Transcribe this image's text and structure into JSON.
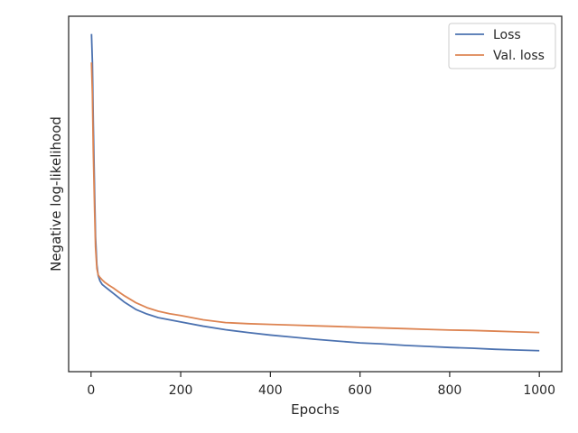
{
  "chart_data": {
    "type": "line",
    "xlabel": "Epochs",
    "ylabel": "Negative log-likelihood",
    "xlim": [
      -50,
      1050
    ],
    "ylim": [
      0,
      1
    ],
    "xticks": [
      0,
      200,
      400,
      600,
      800,
      1000
    ],
    "xtick_labels": [
      "0",
      "200",
      "400",
      "600",
      "800",
      "1000"
    ],
    "yticks_shown": false,
    "grid": false,
    "legend_position": "top-right",
    "series": [
      {
        "name": "Loss",
        "color": "#4c72b0",
        "x": [
          1,
          3,
          5,
          8,
          10,
          13,
          16,
          20,
          25,
          30,
          40,
          50,
          60,
          75,
          100,
          125,
          150,
          175,
          200,
          250,
          300,
          350,
          400,
          450,
          500,
          550,
          600,
          650,
          700,
          750,
          800,
          850,
          900,
          950,
          1000
        ],
        "y": [
          0.95,
          0.87,
          0.7,
          0.5,
          0.38,
          0.3,
          0.27,
          0.255,
          0.245,
          0.24,
          0.23,
          0.22,
          0.21,
          0.195,
          0.175,
          0.162,
          0.152,
          0.146,
          0.14,
          0.128,
          0.118,
          0.11,
          0.103,
          0.097,
          0.091,
          0.086,
          0.081,
          0.078,
          0.074,
          0.071,
          0.068,
          0.066,
          0.063,
          0.061,
          0.059
        ]
      },
      {
        "name": "Val. loss",
        "color": "#dd8452",
        "x": [
          1,
          3,
          5,
          8,
          10,
          13,
          16,
          20,
          25,
          30,
          40,
          50,
          60,
          75,
          100,
          125,
          150,
          175,
          200,
          250,
          300,
          350,
          400,
          450,
          500,
          550,
          600,
          650,
          700,
          750,
          800,
          850,
          900,
          950,
          1000
        ],
        "y": [
          0.87,
          0.78,
          0.62,
          0.45,
          0.35,
          0.29,
          0.272,
          0.265,
          0.258,
          0.252,
          0.243,
          0.235,
          0.226,
          0.213,
          0.194,
          0.18,
          0.17,
          0.163,
          0.158,
          0.146,
          0.138,
          0.135,
          0.133,
          0.131,
          0.129,
          0.127,
          0.125,
          0.123,
          0.121,
          0.119,
          0.117,
          0.116,
          0.114,
          0.112,
          0.11
        ]
      }
    ]
  }
}
